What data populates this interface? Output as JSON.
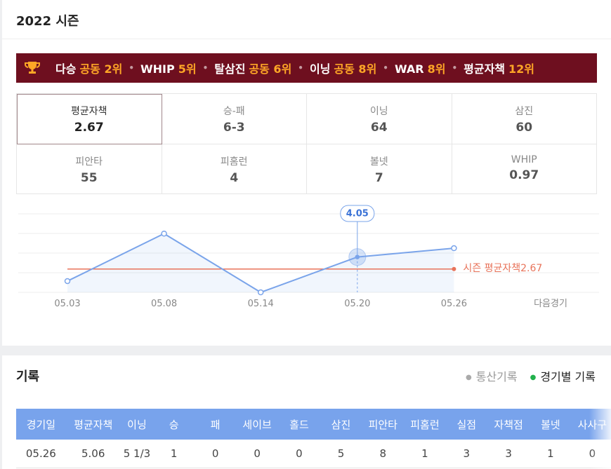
{
  "section_title": "2022 시즌",
  "ranks": [
    {
      "label": "다승",
      "rank": "공동 2위"
    },
    {
      "label": "WHIP",
      "rank": "5위"
    },
    {
      "label": "탈삼진",
      "rank": "공동 6위"
    },
    {
      "label": "이닝",
      "rank": "공동 8위"
    },
    {
      "label": "WAR",
      "rank": "8위"
    },
    {
      "label": "평균자책",
      "rank": "12위"
    }
  ],
  "stats": [
    {
      "label": "평균자책",
      "value": 2.67
    },
    {
      "label": "승-패",
      "value": "6-3"
    },
    {
      "label": "이닝",
      "value": 64
    },
    {
      "label": "삼진",
      "value": 60
    },
    {
      "label": "피안타",
      "value": 55
    },
    {
      "label": "피홈런",
      "value": 4
    },
    {
      "label": "볼넷",
      "value": 7
    },
    {
      "label": "WHIP",
      "value": 0.97
    }
  ],
  "chart_data": {
    "type": "line",
    "categories": [
      "05.03",
      "05.08",
      "05.14",
      "05.20",
      "05.26",
      "다음경기"
    ],
    "values": [
      1.29,
      6.73,
      0,
      4.05,
      5.06,
      null
    ],
    "color": "#7aa4ea",
    "ylim": [
      0,
      9
    ],
    "yticks": [
      0,
      2.25,
      4.5,
      6.75,
      9
    ],
    "grid": true,
    "highlight": 3,
    "average": {
      "label": "시즌 평균자책",
      "value": 2.67,
      "color": "#e8735a"
    }
  },
  "records": {
    "title": "기록",
    "tabs": [
      "통산기록",
      "경기별 기록"
    ],
    "table": {
      "columns": [
        "경기일",
        "평균자책",
        "이닝",
        "승",
        "패",
        "세이브",
        "홀드",
        "삼진",
        "피안타",
        "피홈런",
        "실점",
        "자책점",
        "볼넷",
        "사사구"
      ],
      "rows": [
        [
          "05.26",
          5.06,
          "5 1/3",
          1,
          0,
          0,
          0,
          5,
          8,
          1,
          3,
          3,
          1,
          0
        ]
      ]
    }
  }
}
